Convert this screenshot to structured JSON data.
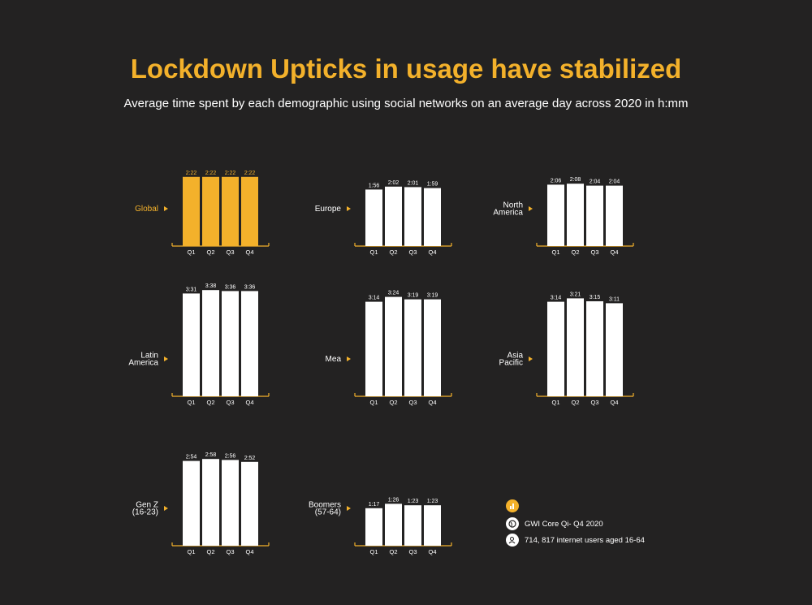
{
  "header": {
    "title": "Lockdown Upticks in usage have stabilized",
    "subtitle": "Average time spent by each demographic using social networks on an average day across 2020 in h:mm"
  },
  "colors": {
    "background": "#232222",
    "accent": "#f3b12b",
    "bar_default": "#ffffff",
    "text": "#ffffff"
  },
  "chart_data": [
    {
      "type": "bar",
      "label_lines": [
        "Global"
      ],
      "highlight": true,
      "categories": [
        "Q1",
        "Q2",
        "Q3",
        "Q4"
      ],
      "value_labels": [
        "2:22",
        "2:22",
        "2:22",
        "2:22"
      ],
      "values": [
        142,
        142,
        142,
        142
      ],
      "ylim": [
        0,
        240
      ]
    },
    {
      "type": "bar",
      "label_lines": [
        "Europe"
      ],
      "categories": [
        "Q1",
        "Q2",
        "Q3",
        "Q4"
      ],
      "value_labels": [
        "1:56",
        "2:02",
        "2:01",
        "1:59"
      ],
      "values": [
        116,
        122,
        121,
        119
      ],
      "ylim": [
        0,
        240
      ]
    },
    {
      "type": "bar",
      "label_lines": [
        "North",
        "America"
      ],
      "categories": [
        "Q1",
        "Q2",
        "Q3",
        "Q4"
      ],
      "value_labels": [
        "2:06",
        "2:08",
        "2:04",
        "2:04"
      ],
      "values": [
        126,
        128,
        124,
        124
      ],
      "ylim": [
        0,
        240
      ]
    },
    {
      "type": "bar",
      "label_lines": [
        "Latin",
        "America"
      ],
      "categories": [
        "Q1",
        "Q2",
        "Q3",
        "Q4"
      ],
      "value_labels": [
        "3:31",
        "3:38",
        "3:36",
        "3:36"
      ],
      "values": [
        211,
        218,
        216,
        216
      ],
      "ylim": [
        0,
        240
      ]
    },
    {
      "type": "bar",
      "label_lines": [
        "Mea"
      ],
      "categories": [
        "Q1",
        "Q2",
        "Q3",
        "Q4"
      ],
      "value_labels": [
        "3:14",
        "3:24",
        "3:19",
        "3:19"
      ],
      "values": [
        194,
        204,
        199,
        199
      ],
      "ylim": [
        0,
        240
      ]
    },
    {
      "type": "bar",
      "label_lines": [
        "Asia",
        "Pacific"
      ],
      "categories": [
        "Q1",
        "Q2",
        "Q3",
        "Q4"
      ],
      "value_labels": [
        "3:14",
        "3:21",
        "3:15",
        "3:11"
      ],
      "values": [
        194,
        201,
        195,
        191
      ],
      "ylim": [
        0,
        240
      ]
    },
    {
      "type": "bar",
      "label_lines": [
        "Gen Z",
        "(16-23)"
      ],
      "categories": [
        "Q1",
        "Q2",
        "Q3",
        "Q4"
      ],
      "value_labels": [
        "2:54",
        "2:58",
        "2:56",
        "2:52"
      ],
      "values": [
        174,
        178,
        176,
        172
      ],
      "ylim": [
        0,
        240
      ]
    },
    {
      "type": "bar",
      "label_lines": [
        "Boomers",
        "(57-64)"
      ],
      "categories": [
        "Q1",
        "Q2",
        "Q3",
        "Q4"
      ],
      "value_labels": [
        "1:17",
        "1:26",
        "1:23",
        "1:23"
      ],
      "values": [
        77,
        86,
        83,
        83
      ],
      "ylim": [
        0,
        240
      ]
    }
  ],
  "legend": {
    "items": [
      {
        "icon": "bar-chart-icon",
        "text": ""
      },
      {
        "icon": "globe-icon",
        "text": "GWI Core Qi- Q4 2020"
      },
      {
        "icon": "user-icon",
        "text": "714, 817 internet users aged 16-64"
      }
    ]
  }
}
